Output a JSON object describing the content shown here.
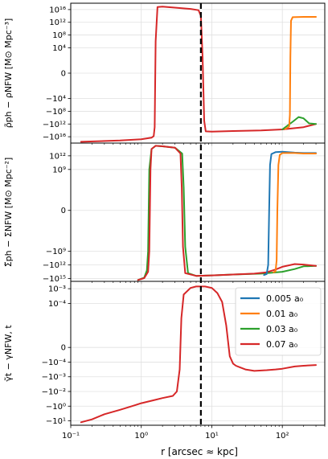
{
  "chart_data": {
    "type": "line",
    "layout": "three vertically stacked panels sharing a log-scaled x axis",
    "shared_x": {
      "label": "r [arcsec ≈ kpc]",
      "scale": "log",
      "xlim": [
        0.1,
        400
      ],
      "ticks": [
        {
          "value": 0.1,
          "label": "10⁻¹"
        },
        {
          "value": 1,
          "label": "10⁰"
        },
        {
          "value": 10,
          "label": "10¹"
        },
        {
          "value": 100,
          "label": "10²"
        }
      ]
    },
    "vertical_marker": {
      "x": 7,
      "style": "dashed",
      "color": "#000000"
    },
    "legend": {
      "panel": 3,
      "placement": "top-right",
      "entries": [
        {
          "label": "0.005 a₀",
          "color": "#1f77b4"
        },
        {
          "label": "0.01 a₀",
          "color": "#ff7f0e"
        },
        {
          "label": "0.03 a₀",
          "color": "#2ca02c"
        },
        {
          "label": "0.07 a₀",
          "color": "#d62728"
        }
      ]
    },
    "panels": [
      {
        "ylabel": "ρ̃ph − ρNFW [M⊙ Mpc⁻³]",
        "yscale": "symlog",
        "ylim": [
          -22,
          22
        ],
        "yticks": [
          {
            "value": 20,
            "label": "10¹⁶"
          },
          {
            "value": 16,
            "label": "10¹²"
          },
          {
            "value": 12,
            "label": "10⁸"
          },
          {
            "value": 8,
            "label": "10⁴"
          },
          {
            "value": 0,
            "label": "0"
          },
          {
            "value": -8,
            "label": "−10⁴"
          },
          {
            "value": -12,
            "label": "−10⁸"
          },
          {
            "value": -16,
            "label": "−10¹²"
          },
          {
            "value": -20,
            "label": "−10¹⁶"
          }
        ],
        "series": [
          {
            "color": "#d62728",
            "x": [
              0.14,
              0.5,
              1.0,
              1.4,
              1.5,
              1.55,
              1.6,
              1.7,
              2.0,
              3,
              5,
              6.5,
              7,
              7.4,
              7.8,
              8.2,
              10,
              20,
              50,
              100,
              200,
              300
            ],
            "y": [
              -21.6,
              -21.2,
              -20.8,
              -20.3,
              -19.8,
              -17,
              10,
              20.8,
              20.9,
              20.6,
              20.2,
              19.8,
              18,
              5,
              -15,
              -18.3,
              -18.4,
              -18.2,
              -18.0,
              -17.7,
              -17.0,
              -16.0
            ]
          },
          {
            "color": "#2ca02c",
            "x": [
              100,
              140,
              170,
              200,
              240,
              300
            ],
            "y": [
              -17.7,
              -15.3,
              -13.8,
              -14.2,
              -15.8,
              -16.0
            ]
          },
          {
            "color": "#ff7f0e",
            "x": [
              110,
              125,
              128,
              130,
              133,
              140,
              200,
              300
            ],
            "y": [
              -17.6,
              -16.8,
              -13,
              5,
              16.5,
              17.6,
              17.7,
              17.7
            ]
          }
        ]
      },
      {
        "ylabel": "Σ̃ph − ΣNFW [M⊙ Mpc⁻²]",
        "yscale": "symlog",
        "ylim": [
          -15.6,
          14.8
        ],
        "yticks": [
          {
            "value": 12,
            "label": "10¹²"
          },
          {
            "value": 9,
            "label": "10⁹"
          },
          {
            "value": 0,
            "label": "0"
          },
          {
            "value": -9,
            "label": "−10⁹"
          },
          {
            "value": -12,
            "label": "−10¹²"
          },
          {
            "value": -15,
            "label": "−10¹⁵"
          }
        ],
        "series": [
          {
            "color": "#2ca02c",
            "x": [
              0.9,
              1.1,
              1.2,
              1.25,
              1.3,
              1.4,
              1.6,
              2.0,
              3.0,
              3.8,
              4.0,
              4.2,
              4.6,
              6,
              10,
              20,
              50,
              100,
              150,
              200,
              300
            ],
            "y": [
              -15.3,
              -14.8,
              -13.2,
              -9,
              9,
              13.5,
              14.2,
              14.1,
              13.8,
              12.5,
              5,
              -8,
              -13.8,
              -14.4,
              -14.3,
              -14.1,
              -13.9,
              -13.5,
              -12.9,
              -12.3,
              -12.2
            ]
          },
          {
            "color": "#d62728",
            "x": [
              0.9,
              1.1,
              1.25,
              1.3,
              1.35,
              1.4,
              1.6,
              2.0,
              3.0,
              3.6,
              3.75,
              3.9,
              4.2,
              6,
              10,
              20,
              40,
              60,
              80,
              100,
              150,
              200,
              300
            ],
            "y": [
              -15.3,
              -14.9,
              -13.5,
              -9,
              9,
              13.5,
              14.2,
              14.1,
              13.8,
              12.5,
              5,
              -8,
              -13.8,
              -14.4,
              -14.3,
              -14.1,
              -13.9,
              -13.6,
              -13.0,
              -12.4,
              -11.8,
              -11.9,
              -12.2
            ]
          },
          {
            "color": "#1f77b4",
            "x": [
              55,
              60,
              63,
              65,
              67,
              70,
              80,
              100,
              150,
              200,
              300
            ],
            "y": [
              -14.2,
              -14.0,
              -12,
              0,
              10,
              12.4,
              12.8,
              12.9,
              12.7,
              12.6,
              12.6
            ]
          },
          {
            "color": "#ff7f0e",
            "x": [
              75,
              80,
              83,
              85,
              88,
              92,
              100,
              150,
              200,
              300
            ],
            "y": [
              -13.6,
              -13.4,
              -11,
              0,
              10,
              12.2,
              12.6,
              12.6,
              12.5,
              12.5
            ]
          }
        ]
      },
      {
        "ylabel": "γ̃t − γNFW, t",
        "yscale": "symlog",
        "ylim": [
          -5.3,
          4.5
        ],
        "yticks": [
          {
            "value": 4,
            "label": "10⁻³"
          },
          {
            "value": 3,
            "label": "10⁻⁴"
          },
          {
            "value": 0,
            "label": "0"
          },
          {
            "value": -1,
            "label": "−10⁻⁴"
          },
          {
            "value": -2,
            "label": "−10⁻³"
          },
          {
            "value": -3,
            "label": "−10⁻²"
          },
          {
            "value": -4,
            "label": "−10⁰"
          },
          {
            "value": -5,
            "label": "−10¹"
          }
        ],
        "series": [
          {
            "color": "#d62728",
            "x": [
              0.14,
              0.2,
              0.3,
              0.5,
              0.8,
              1.0,
              1.5,
              2.0,
              2.8,
              3.2,
              3.5,
              3.7,
              4.0,
              5,
              6,
              8,
              10,
              12,
              14,
              16,
              18,
              20,
              22,
              25,
              30,
              40,
              60,
              80,
              100,
              150,
              200,
              300
            ],
            "y": [
              -5.1,
              -4.9,
              -4.55,
              -4.25,
              -3.95,
              -3.8,
              -3.6,
              -3.45,
              -3.3,
              -3.0,
              -1.5,
              2.0,
              3.6,
              4.05,
              4.15,
              4.15,
              4.05,
              3.7,
              3.1,
              1.5,
              -0.6,
              -1.1,
              -1.25,
              -1.35,
              -1.5,
              -1.6,
              -1.55,
              -1.5,
              -1.45,
              -1.3,
              -1.25,
              -1.2
            ]
          }
        ]
      }
    ]
  }
}
